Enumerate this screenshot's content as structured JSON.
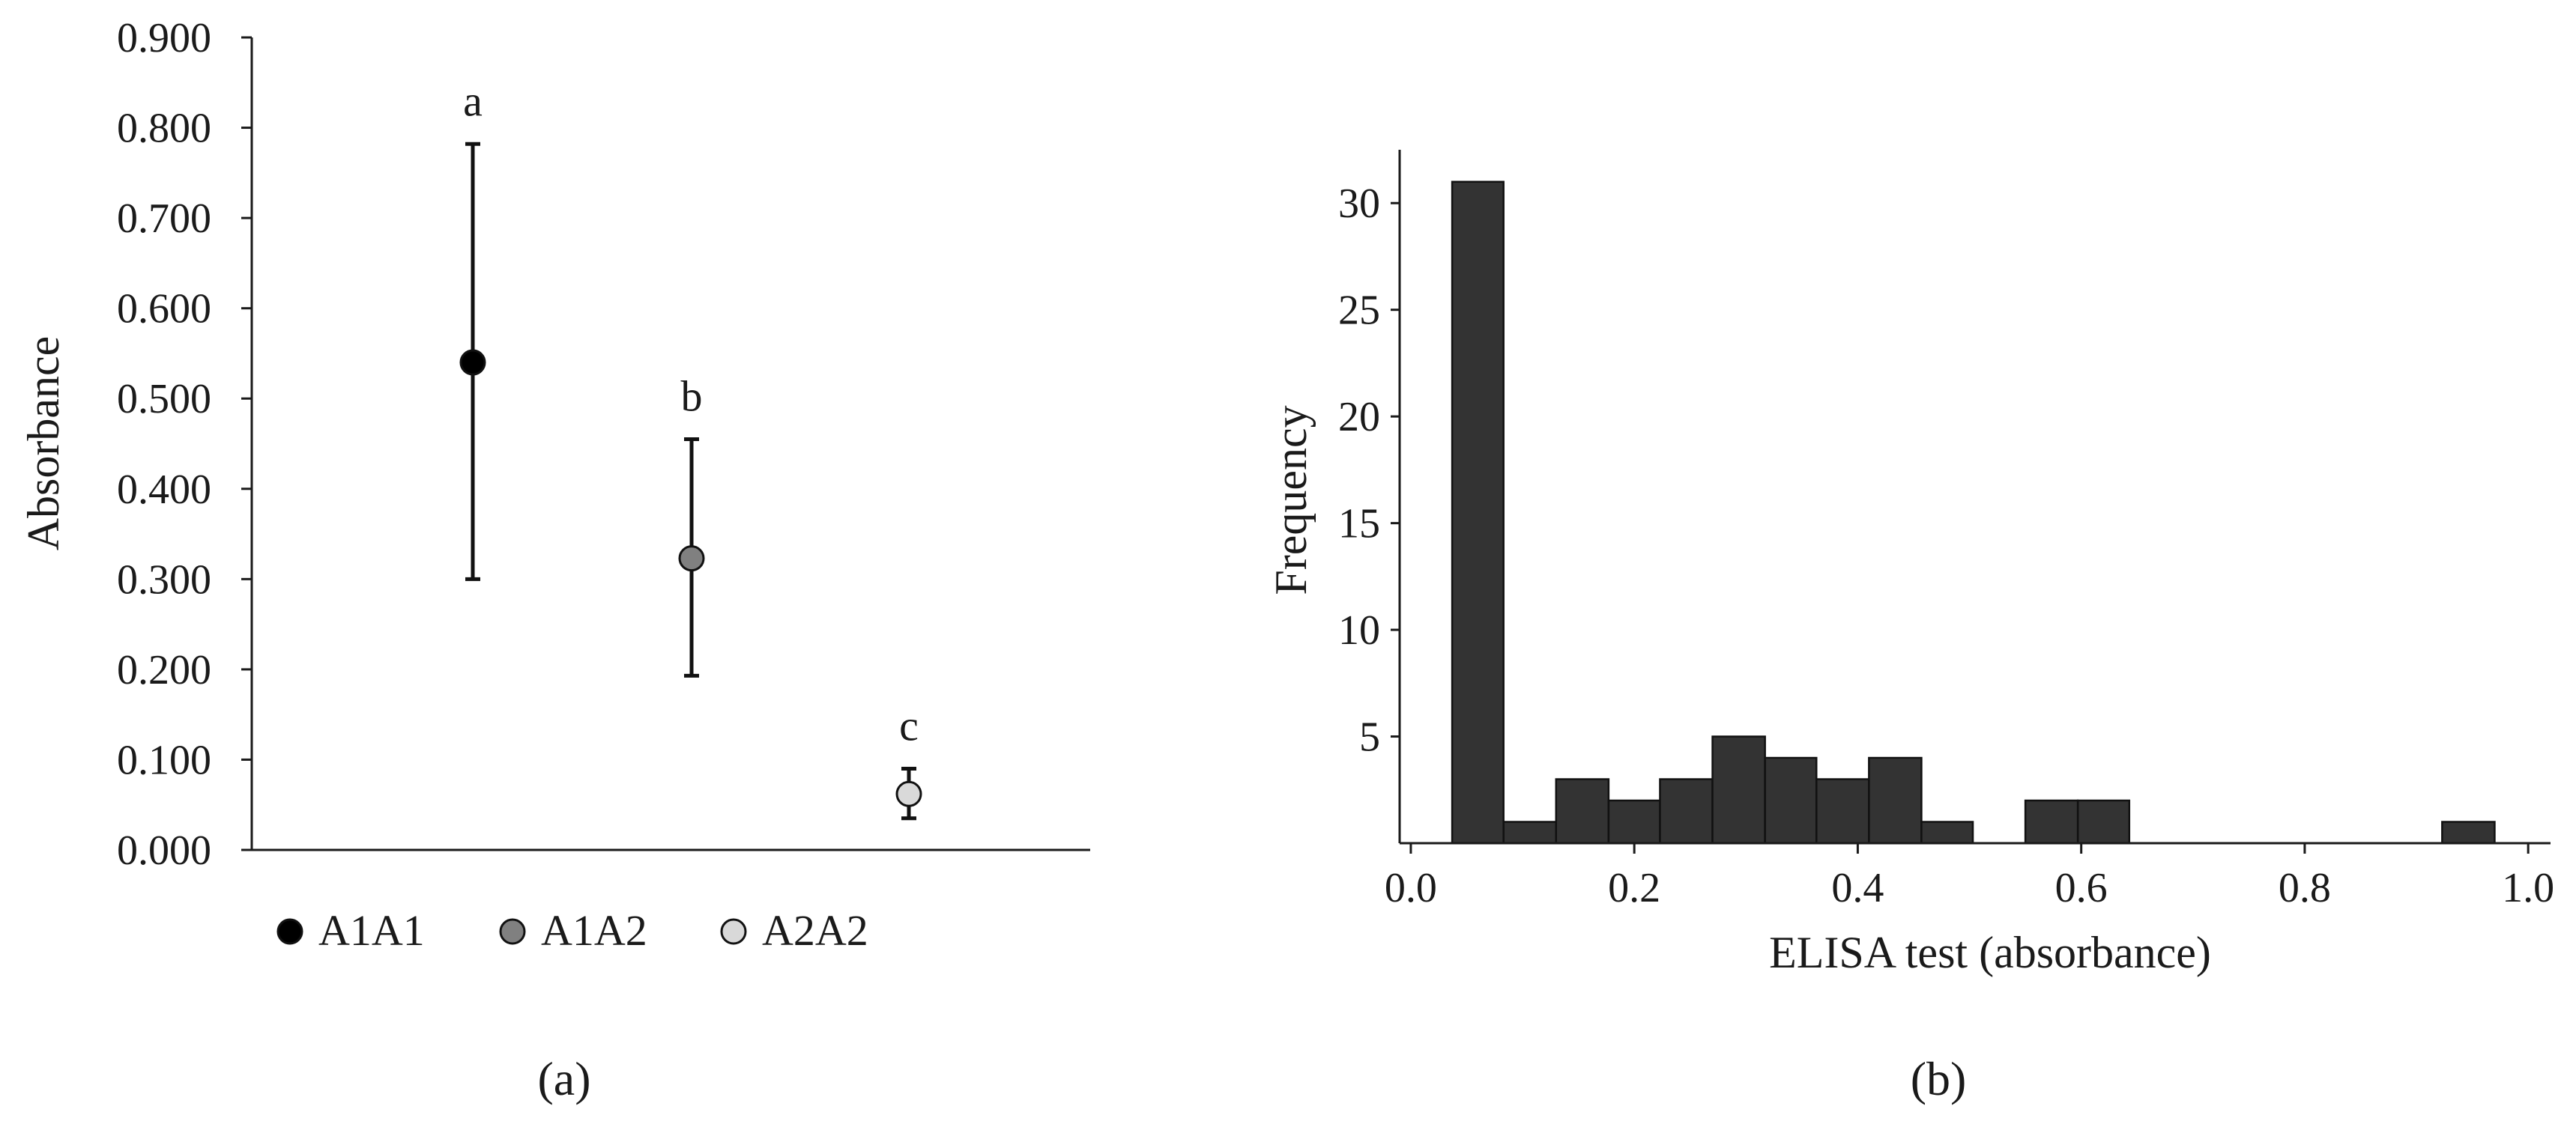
{
  "chart_data": [
    {
      "id": "a",
      "type": "scatter",
      "panel_label": "(a)",
      "ylabel": "Absorbance",
      "ylim": [
        0,
        0.9
      ],
      "yticks": [
        "0.000",
        "0.100",
        "0.200",
        "0.300",
        "0.400",
        "0.500",
        "0.600",
        "0.700",
        "0.800",
        "0.900"
      ],
      "grid": false,
      "legend_position": "bottom",
      "series": [
        {
          "name": "A1A1",
          "mean": 0.54,
          "lower": 0.3,
          "upper": 0.782,
          "letter": "a",
          "color": "#000000"
        },
        {
          "name": "A1A2",
          "mean": 0.323,
          "lower": 0.193,
          "upper": 0.455,
          "letter": "b",
          "color": "#808080"
        },
        {
          "name": "A2A2",
          "mean": 0.062,
          "lower": 0.035,
          "upper": 0.09,
          "letter": "c",
          "color": "#d9d9d9"
        }
      ]
    },
    {
      "id": "b",
      "type": "bar",
      "subtype": "histogram",
      "panel_label": "(b)",
      "xlabel": "ELISA test (absorbance)",
      "ylabel": "Frequency",
      "xlim": [
        -0.01,
        1.02
      ],
      "ylim": [
        0,
        32.5
      ],
      "xticks": [
        "0.0",
        "0.2",
        "0.4",
        "0.6",
        "0.8",
        "1.0"
      ],
      "yticks": [
        "5",
        "10",
        "15",
        "20",
        "25",
        "30"
      ],
      "grid": false,
      "bar_color": "#333333",
      "bins": [
        {
          "x0": 0.037,
          "x1": 0.083,
          "count": 31
        },
        {
          "x0": 0.083,
          "x1": 0.13,
          "count": 1
        },
        {
          "x0": 0.13,
          "x1": 0.177,
          "count": 3
        },
        {
          "x0": 0.177,
          "x1": 0.223,
          "count": 2
        },
        {
          "x0": 0.223,
          "x1": 0.27,
          "count": 3
        },
        {
          "x0": 0.27,
          "x1": 0.317,
          "count": 5
        },
        {
          "x0": 0.317,
          "x1": 0.363,
          "count": 4
        },
        {
          "x0": 0.363,
          "x1": 0.41,
          "count": 3
        },
        {
          "x0": 0.41,
          "x1": 0.457,
          "count": 4
        },
        {
          "x0": 0.457,
          "x1": 0.503,
          "count": 1
        },
        {
          "x0": 0.55,
          "x1": 0.597,
          "count": 2
        },
        {
          "x0": 0.597,
          "x1": 0.643,
          "count": 2
        },
        {
          "x0": 0.923,
          "x1": 0.97,
          "count": 1
        }
      ]
    }
  ]
}
